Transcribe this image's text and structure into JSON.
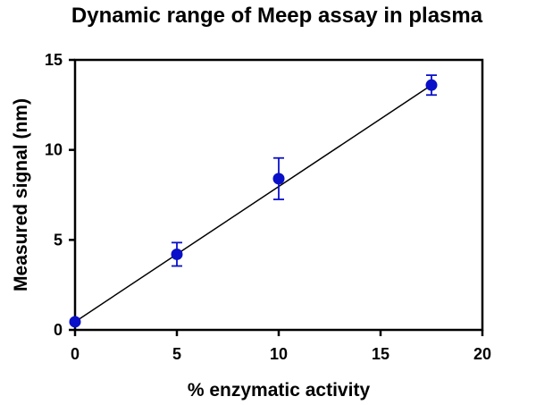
{
  "chart_data": {
    "type": "scatter",
    "title": "Dynamic range of Meep assay in plasma",
    "xlabel": "% enzymatic activity",
    "ylabel": "Measured signal (nm)",
    "xlim": [
      0,
      20
    ],
    "ylim": [
      0,
      15
    ],
    "x_ticks": [
      "0",
      "5",
      "10",
      "15",
      "20"
    ],
    "y_ticks": [
      "0",
      "5",
      "10",
      "15"
    ],
    "grid": false,
    "legend": "none",
    "series": [
      {
        "x": [
          0,
          5,
          10,
          17.5
        ],
        "y": [
          0.45,
          4.2,
          8.4,
          13.6
        ],
        "error_low": [
          0.45,
          3.55,
          7.25,
          13.05
        ],
        "error_high": [
          0.45,
          4.85,
          9.55,
          14.15
        ],
        "color": "#0a10c8"
      }
    ],
    "fit_line": {
      "x": [
        0,
        17.5
      ],
      "y": [
        0.45,
        13.6
      ],
      "color": "#000000"
    }
  }
}
